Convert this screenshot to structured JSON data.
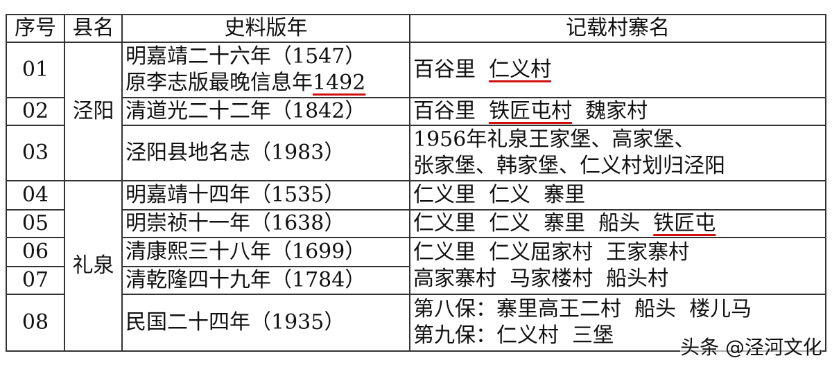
{
  "headers": [
    "序号",
    "县名",
    "史料版年",
    "记载村寨名"
  ],
  "counties": {
    "jingyang": "泾阳",
    "liquan": "礼泉"
  },
  "rows": [
    {
      "no": "01",
      "source": [
        "明嘉靖二十六年（1547）",
        "原李志版最晚信息年",
        "1492"
      ],
      "records": [
        [
          {
            "t": "百谷里  "
          },
          {
            "t": "仁义村",
            "u": true
          }
        ]
      ]
    },
    {
      "no": "02",
      "source": [
        "清道光二十二年（1842）"
      ],
      "records": [
        [
          {
            "t": "百谷里  "
          },
          {
            "t": "铁匠屯村",
            "u": true
          },
          {
            "t": "  魏家村"
          }
        ]
      ]
    },
    {
      "no": "03",
      "source": [
        "泾阳县地名志（1983）"
      ],
      "records": [
        [
          {
            "t": "1956年礼泉王家堡、高家堡、"
          }
        ],
        [
          {
            "t": "张家堡、韩家堡、仁义村划归泾阳"
          }
        ]
      ]
    },
    {
      "no": "04",
      "source": [
        "明嘉靖十四年（1535）"
      ],
      "records": [
        [
          {
            "t": "仁义里  仁义  寨里"
          }
        ]
      ]
    },
    {
      "no": "05",
      "source": [
        "明崇祯十一年（1638）"
      ],
      "records": [
        [
          {
            "t": "仁义里  仁义  寨里  船头  "
          },
          {
            "t": "铁匠屯",
            "u": true
          }
        ]
      ]
    },
    {
      "no": "06",
      "source": [
        "清康熙三十八年（1699）"
      ],
      "records": [
        [
          {
            "t": "仁义里  仁义屈家村  王家寨村"
          }
        ],
        [
          {
            "t": "高家寨村  马家楼村  船头村"
          }
        ]
      ]
    },
    {
      "no": "07",
      "source": [
        "清乾隆四十九年（1784）"
      ]
    },
    {
      "no": "08",
      "source": [
        "民国二十四年（1935）"
      ],
      "records": [
        [
          {
            "t": "第八保：寨里高王二村  船头  楼儿马"
          }
        ],
        [
          {
            "t": "第九保：仁义村  三堡"
          }
        ]
      ]
    }
  ],
  "watermark": "头条 @泾河文化",
  "colors": {
    "underline": "#d01010",
    "border": "#333333"
  }
}
